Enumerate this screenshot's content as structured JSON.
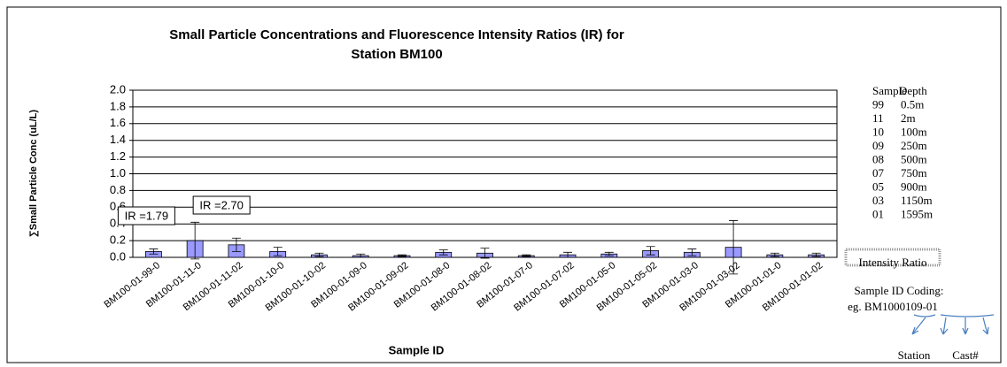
{
  "chart_data": {
    "type": "bar",
    "title": "Small Particle Concentrations and Fluorescence Intensity Ratios (IR) for",
    "title_line2": "Station BM100",
    "y_label": "∑Small Particle Conc (uL/L)",
    "x_label": "Sample ID",
    "categories": [
      "BM100-01-99-0",
      "BM100-01-11-0",
      "BM100-01-11-02",
      "BM100-01-10-0",
      "BM100-01-10-02",
      "BM100-01-09-0",
      "BM100-01-09-02",
      "BM100-01-08-0",
      "BM100-01-08-02",
      "BM100-01-07-0",
      "BM100-01-07-02",
      "BM100-01-05-0",
      "BM100-01-05-02",
      "BM100-01-03-0",
      "BM100-01-03-02",
      "BM100-01-01-0",
      "BM100-01-01-02"
    ],
    "values": [
      0.07,
      0.2,
      0.15,
      0.07,
      0.03,
      0.02,
      0.02,
      0.06,
      0.05,
      0.02,
      0.03,
      0.04,
      0.08,
      0.06,
      0.12,
      0.03,
      0.03
    ],
    "errors": [
      0.03,
      0.22,
      0.08,
      0.05,
      0.02,
      0.02,
      0.01,
      0.03,
      0.06,
      0.01,
      0.03,
      0.02,
      0.05,
      0.04,
      0.32,
      0.02,
      0.02
    ],
    "color": "#9999ff",
    "ylim": [
      0,
      2
    ],
    "yticks": [
      {
        "value": 0,
        "label": "0.0"
      },
      0.2,
      0.4,
      0.6,
      0.8,
      {
        "value": 1,
        "label": "1.0"
      },
      1.2,
      1.4,
      1.6,
      1.8,
      {
        "value": 2,
        "label": "2.0"
      }
    ],
    "grid": true,
    "annotations": [
      {
        "text": "IR =1.79",
        "category": 0
      },
      {
        "text": "IR =2.70",
        "category": 1
      }
    ],
    "side_table": {
      "headers": [
        "Sample",
        "Depth"
      ],
      "rows": [
        [
          "99",
          "0.5m"
        ],
        [
          "11",
          "2m"
        ],
        [
          "10",
          "100m"
        ],
        [
          "09",
          "250m"
        ],
        [
          "08",
          "500m"
        ],
        [
          "07",
          "750m"
        ],
        [
          "05",
          "900m"
        ],
        [
          "03",
          "1150m"
        ],
        [
          "01",
          "1595m"
        ]
      ]
    },
    "legend_box": "Intensity Ratio",
    "coding": {
      "title": "Sample ID Coding:",
      "example": "eg.  BM1000109-01",
      "labels": [
        "Station",
        "Cast#"
      ]
    }
  }
}
